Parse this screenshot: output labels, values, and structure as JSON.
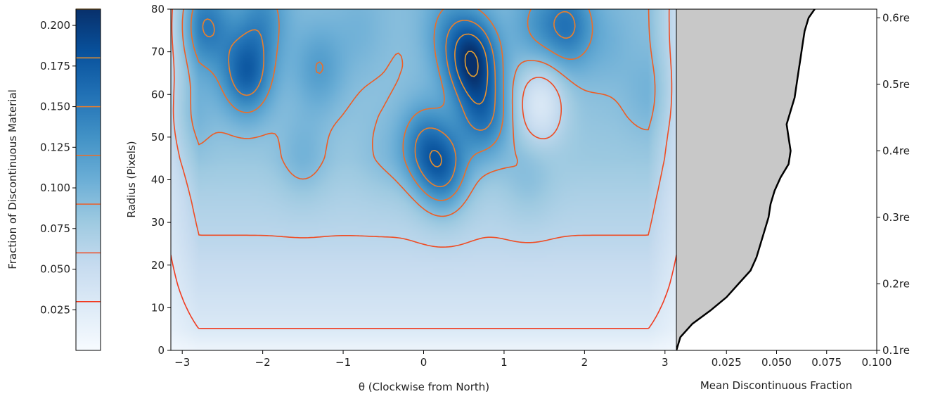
{
  "colors": {
    "cmap_low": "#f7fbff",
    "cmap_mid": "#6baed6",
    "cmap_high": "#08306b",
    "contour_low": "#f03b20",
    "contour_high": "#e8a030",
    "fill_gray": "#c8c8c8",
    "line": "#000000"
  },
  "chart_data": [
    {
      "type": "colorbar",
      "ylabel": "Fraction of Discontinuous Material",
      "ylim": [
        0,
        0.21
      ],
      "ticks": [
        "0.025",
        "0.050",
        "0.075",
        "0.100",
        "0.125",
        "0.150",
        "0.175",
        "0.200"
      ],
      "contour_levels": [
        0.03,
        0.06,
        0.09,
        0.12,
        0.15,
        0.18,
        0.21
      ]
    },
    {
      "type": "heatmap",
      "xlabel": "θ (Clockwise from North)",
      "ylabel": "Radius (Pixels)",
      "xlim": [
        -3.14159,
        3.14159
      ],
      "ylim": [
        0,
        80
      ],
      "xticks": [
        "−3",
        "−2",
        "−1",
        "0",
        "1",
        "2",
        "3"
      ],
      "yticks": [
        "0",
        "10",
        "20",
        "30",
        "40",
        "50",
        "60",
        "70",
        "80"
      ],
      "colormap": "Blues",
      "contours": true,
      "blobs": [
        {
          "theta": -2.2,
          "r": 65,
          "value": 0.17
        },
        {
          "theta": -2.7,
          "r": 76,
          "value": 0.15
        },
        {
          "theta": -2.0,
          "r": 78,
          "value": 0.13
        },
        {
          "theta": -1.3,
          "r": 66,
          "value": 0.12
        },
        {
          "theta": -0.8,
          "r": 75,
          "value": 0.1
        },
        {
          "theta": 0.0,
          "r": 48,
          "value": 0.14
        },
        {
          "theta": 0.25,
          "r": 42,
          "value": 0.15
        },
        {
          "theta": 0.6,
          "r": 68,
          "value": 0.2
        },
        {
          "theta": 0.75,
          "r": 55,
          "value": 0.15
        },
        {
          "theta": 0.3,
          "r": 75,
          "value": 0.12
        },
        {
          "theta": 1.4,
          "r": 76,
          "value": 0.12
        },
        {
          "theta": 1.8,
          "r": 76,
          "value": 0.15
        },
        {
          "theta": 1.45,
          "r": 58,
          "value": 0.03
        },
        {
          "theta": 2.3,
          "r": 72,
          "value": 0.1
        },
        {
          "theta": -1.5,
          "r": 45,
          "value": 0.1
        },
        {
          "theta": -0.5,
          "r": 45,
          "value": 0.09
        },
        {
          "theta": 1.3,
          "r": 40,
          "value": 0.09
        },
        {
          "theta": 2.8,
          "r": 60,
          "value": 0.1
        },
        {
          "theta": -2.9,
          "r": 55,
          "value": 0.1
        }
      ],
      "radial_baseline": [
        {
          "r": 0,
          "value": 0.01
        },
        {
          "r": 5,
          "value": 0.03
        },
        {
          "r": 15,
          "value": 0.045
        },
        {
          "r": 25,
          "value": 0.058
        },
        {
          "r": 35,
          "value": 0.068
        },
        {
          "r": 45,
          "value": 0.08
        },
        {
          "r": 55,
          "value": 0.085
        },
        {
          "r": 65,
          "value": 0.088
        },
        {
          "r": 80,
          "value": 0.09
        }
      ]
    },
    {
      "type": "area",
      "xlabel": "Mean Discontinuous Fraction",
      "xlim": [
        0,
        0.1
      ],
      "xticks": [
        "0.025",
        "0.050",
        "0.075",
        "0.100"
      ],
      "secondary_yticks": [
        "0.1re",
        "0.2re",
        "0.3re",
        "0.4re",
        "0.5re",
        "0.6re"
      ],
      "secondary_ylim": [
        0.1,
        0.613
      ],
      "y": [
        0.1,
        0.12,
        0.14,
        0.16,
        0.18,
        0.2,
        0.22,
        0.24,
        0.26,
        0.28,
        0.3,
        0.32,
        0.34,
        0.36,
        0.38,
        0.4,
        0.42,
        0.44,
        0.46,
        0.48,
        0.5,
        0.52,
        0.54,
        0.56,
        0.58,
        0.6,
        0.613
      ],
      "x": [
        0.0,
        0.002,
        0.008,
        0.017,
        0.025,
        0.031,
        0.037,
        0.04,
        0.042,
        0.044,
        0.046,
        0.047,
        0.049,
        0.052,
        0.056,
        0.057,
        0.056,
        0.055,
        0.057,
        0.059,
        0.06,
        0.061,
        0.062,
        0.063,
        0.064,
        0.066,
        0.069
      ]
    }
  ]
}
